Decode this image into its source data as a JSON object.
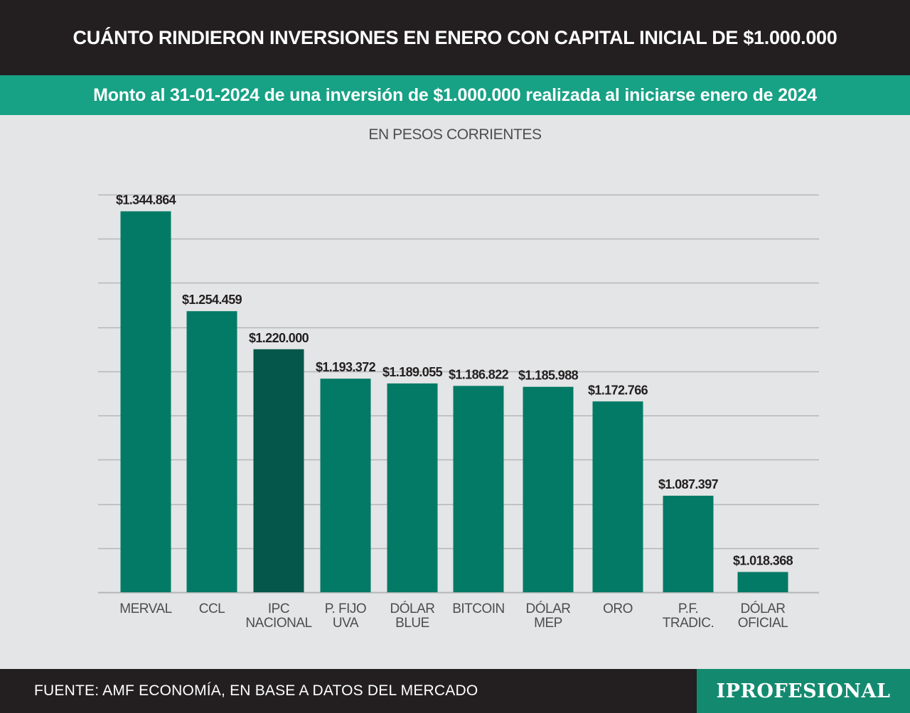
{
  "header": {
    "title": "CUÁNTO RINDIERON INVERSIONES EN ENERO CON CAPITAL INICIAL DE $1.000.000",
    "subtitle": "Monto al 31-01-2024 de una inversión de $1.000.000 realizada al iniciarse enero de 2024",
    "units": "EN PESOS CORRIENTES"
  },
  "footer": {
    "source": "FUENTE: AMF ECONOMÍA, EN BASE A DATOS DEL MERCADO",
    "brand": "IPROFESIONAL"
  },
  "colors": {
    "bar": "#037a66",
    "highlight_bar": "#04574a",
    "grid": "#b5b6b8",
    "title_bg": "#231f20",
    "subtitle_bg": "#17a185",
    "brand_bg": "#138a6f"
  },
  "chart_data": {
    "type": "bar",
    "title": "CUÁNTO RINDIERON INVERSIONES EN ENERO CON CAPITAL INICIAL DE $1.000.000",
    "subtitle": "Monto al 31-01-2024 de una inversión de $1.000.000 realizada al iniciarse enero de 2024",
    "ylabel": "EN PESOS CORRIENTES",
    "categories": [
      [
        "MERVAL"
      ],
      [
        "CCL"
      ],
      [
        "IPC",
        "NACIONAL"
      ],
      [
        "P. FIJO",
        "UVA"
      ],
      [
        "DÓLAR",
        "BLUE"
      ],
      [
        "BITCOIN"
      ],
      [
        "DÓLAR",
        "MEP"
      ],
      [
        "ORO"
      ],
      [
        "P.F.",
        "TRADIC."
      ],
      [
        "DÓLAR",
        "OFICIAL"
      ]
    ],
    "values": [
      1344864,
      1254459,
      1220000,
      1193372,
      1189055,
      1186822,
      1185988,
      1172766,
      1087397,
      1018368
    ],
    "value_labels": [
      "$1.344.864",
      "$1.254.459",
      "$1.220.000",
      "$1.193.372",
      "$1.189.055",
      "$1.186.822",
      "$1.185.988",
      "$1.172.766",
      "$1.087.397",
      "$1.018.368"
    ],
    "highlight_index": 2,
    "ylim": [
      1000000,
      1360000
    ],
    "grid": true,
    "gridlines": [
      1000000,
      1040000,
      1080000,
      1120000,
      1160000,
      1200000,
      1240000,
      1280000,
      1320000,
      1360000
    ],
    "legend": "none"
  }
}
